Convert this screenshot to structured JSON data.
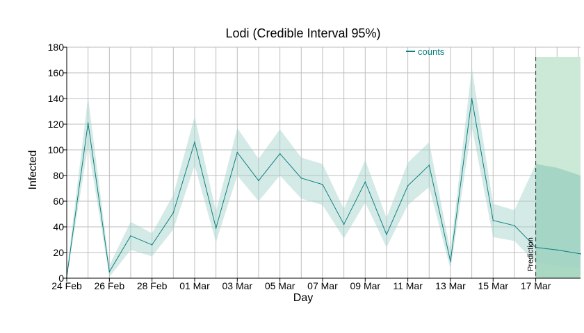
{
  "chart_data": {
    "type": "line",
    "title": "Lodi (Credible Interval 95%)",
    "xlabel": "Day",
    "ylabel": "Infected",
    "ylim": [
      0,
      180
    ],
    "yticks": [
      0,
      20,
      40,
      60,
      80,
      100,
      120,
      140,
      160,
      180
    ],
    "grid": true,
    "legend_position": "top",
    "x_start": "24 Feb",
    "xticks": [
      {
        "day": 0,
        "label": "24 Feb"
      },
      {
        "day": 2,
        "label": "26 Feb"
      },
      {
        "day": 4,
        "label": "28 Feb"
      },
      {
        "day": 6,
        "label": "01 Mar"
      },
      {
        "day": 8,
        "label": "03 Mar"
      },
      {
        "day": 10,
        "label": "05 Mar"
      },
      {
        "day": 12,
        "label": "07 Mar"
      },
      {
        "day": 14,
        "label": "09 Mar"
      },
      {
        "day": 16,
        "label": "11 Mar"
      },
      {
        "day": 18,
        "label": "13 Mar"
      },
      {
        "day": 20,
        "label": "15 Mar"
      },
      {
        "day": 22,
        "label": "17 Mar"
      }
    ],
    "xlim": [
      0,
      24.1
    ],
    "prediction_start_day": 22,
    "prediction_label": "Prediction",
    "series": [
      {
        "name": "counts",
        "color": "#0b7f7f",
        "band_color": "#9fd1c9",
        "x": [
          0,
          1,
          2,
          3,
          4,
          5,
          6,
          7,
          8,
          9,
          10,
          11,
          12,
          13,
          14,
          15,
          16,
          17,
          18,
          19,
          20,
          21,
          22,
          23,
          24.1
        ],
        "values": [
          1,
          121,
          5,
          33,
          26,
          51,
          106,
          39,
          98,
          76,
          97,
          78,
          73,
          42,
          75,
          34,
          72,
          88,
          13,
          140,
          45,
          41,
          24,
          22,
          19
        ],
        "lower": [
          0,
          103,
          1,
          22,
          17,
          38,
          88,
          28,
          80,
          60,
          80,
          62,
          57,
          31,
          59,
          24,
          57,
          71,
          7,
          118,
          32,
          29,
          12,
          10,
          8
        ],
        "upper": [
          5,
          141,
          10,
          44,
          35,
          65,
          126,
          52,
          117,
          93,
          116,
          94,
          89,
          54,
          92,
          47,
          90,
          106,
          21,
          164,
          58,
          53,
          89,
          86,
          80
        ]
      }
    ],
    "prediction_region": {
      "color": "#cbe9d6",
      "inner_color": "#a9d9c2"
    }
  }
}
